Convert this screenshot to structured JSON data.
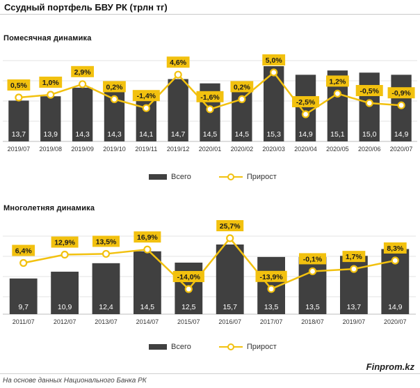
{
  "page": {
    "title": "Ссудный портфель БВУ РК (трлн тг)",
    "source": "На основе данных Национального Банка РК",
    "brand": "Finprom.kz"
  },
  "colors": {
    "bar": "#404040",
    "line": "#f2c10f",
    "label_box": "#f2c10f",
    "grid": "#e3e3e3"
  },
  "chart_data": [
    {
      "type": "bar",
      "title": "Помесячная  динамика",
      "categories": [
        "2019/07",
        "2019/08",
        "2019/09",
        "2019/10",
        "2019/11",
        "2019/12",
        "2020/01",
        "2020/02",
        "2020/03",
        "2020/04",
        "2020/05",
        "2020/06",
        "2020/07"
      ],
      "series": [
        {
          "name": "Всего",
          "type": "bar",
          "values": [
            13.7,
            13.9,
            14.3,
            14.3,
            14.1,
            14.7,
            14.5,
            14.5,
            15.3,
            14.9,
            15.1,
            15.0,
            14.9
          ],
          "labels": [
            "13,7",
            "13,9",
            "14,3",
            "14,3",
            "14,1",
            "14,7",
            "14,5",
            "14,5",
            "15,3",
            "14,9",
            "15,1",
            "15,0",
            "14,9"
          ]
        },
        {
          "name": "Прирост",
          "type": "line",
          "values": [
            0.5,
            1.0,
            2.9,
            0.2,
            -1.4,
            4.6,
            -1.6,
            0.2,
            5.0,
            -2.5,
            1.2,
            -0.5,
            -0.9
          ],
          "labels": [
            "0,5%",
            "1,0%",
            "2,9%",
            "0,2%",
            "-1,4%",
            "4,6%",
            "-1,6%",
            "0,2%",
            "5,0%",
            "-2,5%",
            "1,2%",
            "-0,5%",
            "-0,9%"
          ]
        }
      ],
      "legend_position": "bottom-center",
      "grid": true
    },
    {
      "type": "bar",
      "title": "Многолетняя  динамика",
      "categories": [
        "2011/07",
        "2012/07",
        "2013/07",
        "2014/07",
        "2015/07",
        "2016/07",
        "2017/07",
        "2018/07",
        "2019/07",
        "2020/07"
      ],
      "series": [
        {
          "name": "Всего",
          "type": "bar",
          "values": [
            9.7,
            10.9,
            12.4,
            14.5,
            12.5,
            15.7,
            13.5,
            13.5,
            13.7,
            14.9
          ],
          "labels": [
            "9,7",
            "10,9",
            "12,4",
            "14,5",
            "12,5",
            "15,7",
            "13,5",
            "13,5",
            "13,7",
            "14,9"
          ]
        },
        {
          "name": "Прирост",
          "type": "line",
          "values": [
            6.4,
            12.9,
            13.5,
            16.9,
            -14.0,
            25.7,
            -13.9,
            -0.1,
            1.7,
            8.3
          ],
          "labels": [
            "6,4%",
            "12,9%",
            "13,5%",
            "16,9%",
            "-14,0%",
            "25,7%",
            "-13,9%",
            "-0,1%",
            "1,7%",
            "8,3%"
          ]
        }
      ],
      "legend_position": "bottom-center",
      "grid": true
    }
  ]
}
